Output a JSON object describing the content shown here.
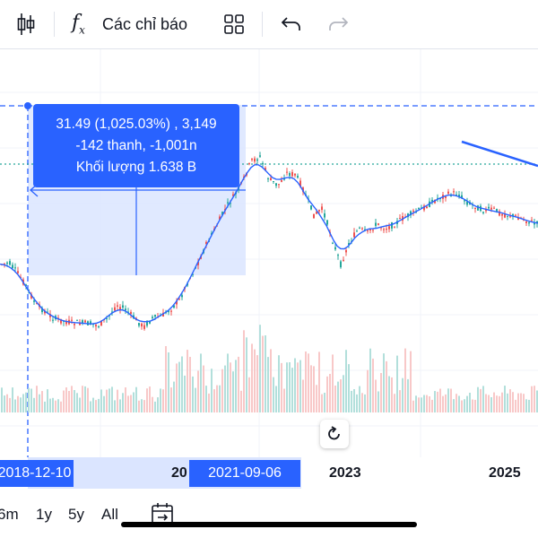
{
  "toolbar": {
    "indicators_label": "Các chỉ báo",
    "icons": [
      "candlestick-icon",
      "function-fx-icon",
      "templates-grid-icon",
      "undo-icon",
      "redo-icon"
    ]
  },
  "measure": {
    "line1": "31.49 (1,025.03%) , 3,149",
    "line2": "-142 thanh, -1,001n",
    "line3": "Khối lượng 1.638 B"
  },
  "time_axis": {
    "start_badge": "2018-12-10",
    "end_badge": "2021-09-06",
    "partial_label": "20",
    "years": [
      "2023",
      "2025"
    ]
  },
  "ranges": [
    "6m",
    "1y",
    "5y",
    "All"
  ],
  "colors": {
    "accent": "#2962ff",
    "up": "#26a69a",
    "down": "#ef5350",
    "ma": "#2962ff",
    "range_fill": "#dbe5ff"
  },
  "chart_data": {
    "type": "line",
    "x": [
      0,
      10,
      20,
      30,
      40,
      50,
      60,
      70,
      80,
      90,
      100,
      110,
      120,
      130,
      140,
      150,
      160,
      170,
      180,
      190,
      200,
      210,
      220,
      230,
      240,
      250,
      260,
      270,
      280,
      290,
      300,
      310,
      320,
      330,
      340,
      350,
      360,
      370,
      380,
      390,
      400,
      410,
      420,
      430,
      440,
      450,
      460,
      470,
      480,
      490,
      500,
      510,
      520,
      530,
      540,
      550,
      560,
      570,
      580,
      590,
      600
    ],
    "series": [
      {
        "values": [
          240,
          238,
          250,
          265,
          285,
          292,
          300,
          303,
          305,
          305,
          306,
          308,
          300,
          285,
          290,
          300,
          310,
          300,
          298,
          290,
          280,
          258,
          240,
          218,
          200,
          180,
          165,
          150,
          125,
          120,
          145,
          152,
          138,
          140,
          160,
          185,
          178,
          210,
          240,
          215,
          200,
          205,
          195,
          200,
          195,
          188,
          183,
          178,
          172,
          165,
          162,
          160,
          170,
          175,
          180,
          178,
          184,
          185,
          188,
          192,
          195
        ]
      }
    ]
  }
}
